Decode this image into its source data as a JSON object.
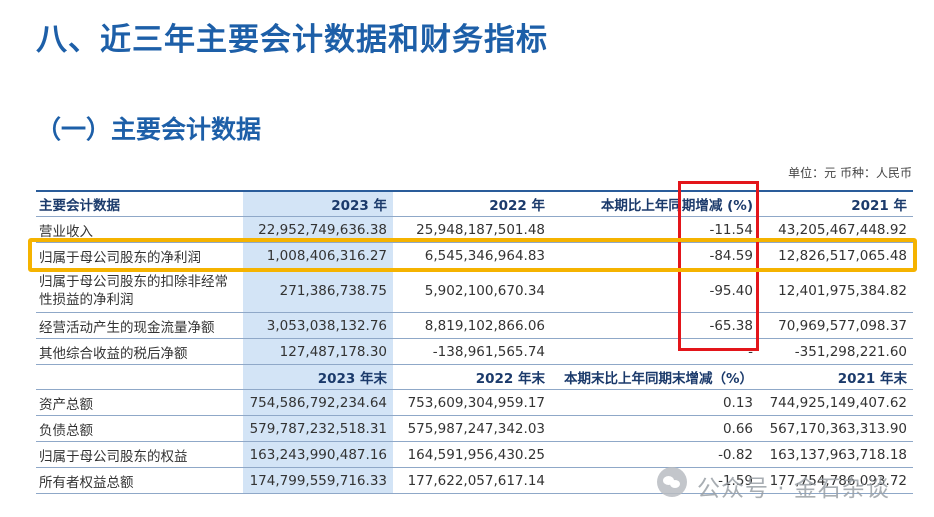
{
  "heading": "八、近三年主要会计数据和财务指标",
  "subheading": "（一）主要会计数据",
  "unit_note": "单位：元  币种：人民币",
  "table": {
    "header1": [
      "主要会计数据",
      "2023 年",
      "2022 年",
      "本期比上年同期增减 (%)",
      "2021 年"
    ],
    "rows1": [
      [
        "营业收入",
        "22,952,749,636.38",
        "25,948,187,501.48",
        "-11.54",
        "43,205,467,448.92"
      ],
      [
        "归属于母公司股东的净利润",
        "1,008,406,316.27",
        "6,545,346,964.83",
        "-84.59",
        "12,826,517,065.48"
      ],
      [
        "归属于母公司股东的扣除非经常性损益的净利润",
        "271,386,738.75",
        "5,902,100,670.34",
        "-95.40",
        "12,401,975,384.82"
      ],
      [
        "经营活动产生的现金流量净额",
        "3,053,038,132.76",
        "8,819,102,866.06",
        "-65.38",
        "70,969,577,098.37"
      ],
      [
        "其他综合收益的税后净额",
        "127,487,178.30",
        "-138,961,565.74",
        "-",
        "-351,298,221.60"
      ]
    ],
    "header2": [
      "",
      "2023 年末",
      "2022 年末",
      "本期末比上年同期末增减（%）",
      "2021 年末"
    ],
    "rows2": [
      [
        "资产总额",
        "754,586,792,234.64",
        "753,609,304,959.17",
        "0.13",
        "744,925,149,407.62"
      ],
      [
        "负债总额",
        "579,787,232,518.31",
        "575,987,247,342.03",
        "0.66",
        "567,170,363,313.90"
      ],
      [
        "归属于母公司股东的权益",
        "163,243,990,487.16",
        "164,591,956,430.25",
        "-0.82",
        "163,137,963,718.18"
      ],
      [
        "所有者权益总额",
        "174,799,559,716.33",
        "177,622,057,617.14",
        "-1.59",
        "177,754,786,093.72"
      ]
    ]
  },
  "watermark": "公众号 · 金石杂谈",
  "colors": {
    "heading": "#1d5fa8",
    "highlight_col": "#d3e4f6",
    "red_box": "#e3151a",
    "yellow_box": "#f5b300"
  }
}
